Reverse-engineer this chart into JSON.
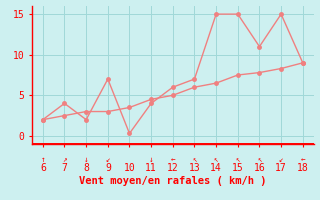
{
  "xlabel": "Vent moyen/en rafales ( km/h )",
  "x_values": [
    6,
    7,
    8,
    9,
    10,
    11,
    12,
    13,
    14,
    15,
    16,
    17,
    18
  ],
  "line1_y": [
    2,
    4,
    2,
    7,
    0.3,
    4,
    6,
    7,
    15,
    15,
    11,
    15,
    9
  ],
  "line2_y": [
    2,
    2.5,
    3,
    3,
    3.5,
    4.5,
    5,
    6,
    6.5,
    7.5,
    7.8,
    8.3,
    9
  ],
  "line_color": "#f08080",
  "background_color": "#cdf0f0",
  "grid_color": "#a0d8d8",
  "axis_color": "#ff0000",
  "text_color": "#ff0000",
  "ylim": [
    -1,
    16
  ],
  "xlim": [
    5.5,
    18.5
  ],
  "yticks": [
    0,
    5,
    10,
    15
  ],
  "xticks": [
    6,
    7,
    8,
    9,
    10,
    11,
    12,
    13,
    14,
    15,
    16,
    17,
    18
  ],
  "marker_size": 2.5,
  "line_width": 1.0,
  "xlabel_fontsize": 7.5,
  "tick_fontsize": 7,
  "arrow_symbols": [
    "↑",
    "↗",
    "↓",
    "↙",
    "",
    "↓",
    "←",
    "↖",
    "↖",
    "↖",
    "↖",
    "↙",
    "←"
  ]
}
